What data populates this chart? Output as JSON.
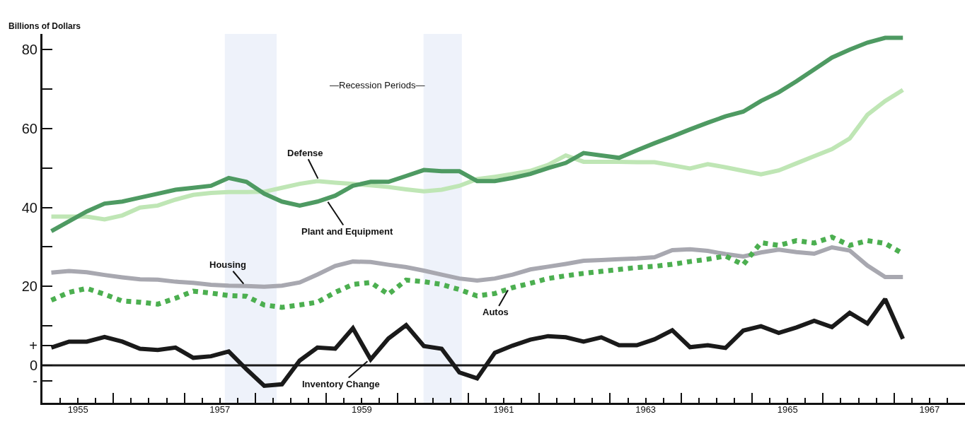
{
  "chart_data": {
    "type": "line",
    "ylabel": "Billions of Dollars",
    "x": [
      1955.125,
      1955.375,
      1955.625,
      1955.875,
      1956.125,
      1956.375,
      1956.625,
      1956.875,
      1957.125,
      1957.375,
      1957.625,
      1957.875,
      1958.125,
      1958.375,
      1958.625,
      1958.875,
      1959.125,
      1959.375,
      1959.625,
      1959.875,
      1960.125,
      1960.375,
      1960.625,
      1960.875,
      1961.125,
      1961.375,
      1961.625,
      1961.875,
      1962.125,
      1962.375,
      1962.625,
      1962.875,
      1963.125,
      1963.375,
      1963.625,
      1963.875,
      1964.125,
      1964.375,
      1964.625,
      1964.875,
      1965.125,
      1965.375,
      1965.625,
      1965.875,
      1966.125,
      1966.375,
      1966.625,
      1966.875,
      1967.125
    ],
    "series": [
      {
        "color": "#bfe6b5",
        "line_style": "solid",
        "values": [
          37.7,
          37.7,
          37.7,
          37,
          38,
          40,
          40.5,
          42,
          43.2,
          43.7,
          43.9,
          43.9,
          44,
          45,
          46,
          46.7,
          46.3,
          46,
          45.6,
          45.2,
          44.6,
          44.1,
          44.5,
          45.5,
          47.2,
          47.8,
          48.5,
          49.3,
          50.8,
          53.2,
          51.6,
          51.6,
          51.6,
          51.5,
          51.5,
          50.7,
          49.9,
          51,
          50.2,
          49.3,
          48.4,
          49.4,
          51.2,
          53,
          54.8,
          57.5,
          63.5,
          67,
          69.8
        ]
      },
      {
        "color": "#4e9a62",
        "line_style": "solid",
        "values": [
          34,
          36.5,
          39,
          41,
          41.5,
          42.5,
          43.5,
          44.5,
          45,
          45.5,
          47.5,
          46.5,
          43.5,
          41.5,
          40.5,
          41.5,
          43,
          45.5,
          46.5,
          46.5,
          48,
          49.5,
          49.2,
          49.2,
          46.7,
          46.7,
          47.5,
          48.5,
          50,
          51.3,
          53.8,
          53.2,
          52.6,
          54.5,
          56.3,
          58,
          59.8,
          61.5,
          63.1,
          64.3,
          67,
          69.2,
          72,
          75,
          78,
          80,
          81.8,
          83,
          83
        ]
      },
      {
        "color": "#a8a8b0",
        "line_style": "solid",
        "values": [
          23.5,
          23.9,
          23.6,
          22.9,
          22.3,
          21.8,
          21.7,
          21.2,
          20.9,
          20.4,
          20.2,
          20.1,
          19.9,
          20.2,
          21,
          23,
          25.2,
          26.3,
          26.2,
          25.5,
          24.9,
          24,
          23,
          22,
          21.5,
          22,
          23,
          24.3,
          25,
          25.7,
          26.5,
          26.7,
          26.9,
          27.1,
          27.4,
          29.2,
          29.4,
          29,
          28.2,
          27.6,
          28.6,
          29.3,
          28.7,
          28.3,
          29.9,
          29.1,
          25.3,
          22.4,
          22.4
        ]
      },
      {
        "color": "#4caf50",
        "line_style": "dotted",
        "values": [
          16.5,
          18.5,
          19.5,
          18,
          16.3,
          16,
          15.5,
          17,
          18.8,
          18.3,
          17.7,
          17.5,
          15.3,
          14.7,
          15.3,
          16,
          18.5,
          20.5,
          21,
          18,
          21.6,
          21.2,
          20.5,
          19.2,
          17.6,
          18.2,
          19.7,
          20.8,
          22,
          22.7,
          23.3,
          23.8,
          24.3,
          24.8,
          25.1,
          25.6,
          26.3,
          26.9,
          27.7,
          25.5,
          31.1,
          30.4,
          31.6,
          31,
          32.5,
          30.4,
          31.6,
          30.9,
          28.3
        ]
      },
      {
        "color": "#1a1a1a",
        "line_style": "solid",
        "values": [
          4.5,
          6,
          6,
          7.2,
          6,
          4.2,
          3.9,
          4.5,
          1.9,
          2.3,
          3.5,
          -1,
          -5.2,
          -4.8,
          1.2,
          4.5,
          4.2,
          9.4,
          1.5,
          6.8,
          10.2,
          4.9,
          4.2,
          -1.8,
          -3.3,
          3.2,
          5,
          6.5,
          7.4,
          7.1,
          6,
          7.1,
          5.1,
          5.1,
          6.6,
          8.9,
          4.6,
          5.1,
          4.4,
          8.8,
          9.9,
          8.2,
          9.6,
          11.3,
          9.7,
          13.3,
          10.6,
          16.8,
          6.7
        ]
      }
    ],
    "annotations": [
      "—Recession Periods—",
      {
        "text": "Defense",
        "x": 1958.9,
        "y": 46.7
      },
      {
        "text": "Plant and Equipment",
        "x": 1959.0,
        "y": 42
      },
      {
        "text": "Housing",
        "x": 1957.86,
        "y": 20.1
      },
      {
        "text": "Autos",
        "x": 1961.58,
        "y": 19.7
      },
      {
        "text": "Inventory Change",
        "x": 1959.61,
        "y": 1.5
      }
    ],
    "bands": [
      {
        "axis": "x",
        "from": 1957.57,
        "to": 1958.3,
        "color": "#eef2fa"
      },
      {
        "axis": "x",
        "from": 1960.37,
        "to": 1960.91,
        "color": "#eef2fa"
      }
    ],
    "ref_lines": [
      {
        "axis": "y",
        "value": 0,
        "color": "#1a1a1a"
      }
    ],
    "xlim": [
      1955,
      1968
    ],
    "xticks": [
      {
        "value": 1955.5,
        "label": "1955"
      },
      {
        "value": 1957.5,
        "label": "1957"
      },
      {
        "value": 1959.5,
        "label": "1959"
      },
      {
        "value": 1961.5,
        "label": "1961"
      },
      {
        "value": 1963.5,
        "label": "1963"
      },
      {
        "value": 1965.5,
        "label": "1965"
      },
      {
        "value": 1967.5,
        "label": "1967"
      },
      {
        "value": 1955.25,
        "label": null
      },
      {
        "value": 1955.5,
        "label": null
      },
      {
        "value": 1955.75,
        "label": null
      },
      {
        "value": 1956,
        "label": null
      },
      {
        "value": 1956.25,
        "label": null
      },
      {
        "value": 1956.5,
        "label": null
      },
      {
        "value": 1956.75,
        "label": null
      },
      {
        "value": 1957,
        "label": null
      },
      {
        "value": 1957.25,
        "label": null
      },
      {
        "value": 1957.5,
        "label": null
      },
      {
        "value": 1957.75,
        "label": null
      },
      {
        "value": 1958,
        "label": null
      },
      {
        "value": 1958.25,
        "label": null
      },
      {
        "value": 1958.5,
        "label": null
      },
      {
        "value": 1958.75,
        "label": null
      },
      {
        "value": 1959,
        "label": null
      },
      {
        "value": 1959.25,
        "label": null
      },
      {
        "value": 1959.5,
        "label": null
      },
      {
        "value": 1959.75,
        "label": null
      },
      {
        "value": 1960,
        "label": null
      },
      {
        "value": 1960.25,
        "label": null
      },
      {
        "value": 1960.5,
        "label": null
      },
      {
        "value": 1960.75,
        "label": null
      },
      {
        "value": 1961,
        "label": null
      },
      {
        "value": 1961.25,
        "label": null
      },
      {
        "value": 1961.5,
        "label": null
      },
      {
        "value": 1961.75,
        "label": null
      },
      {
        "value": 1962,
        "label": null
      },
      {
        "value": 1962.25,
        "label": null
      },
      {
        "value": 1962.5,
        "label": null
      },
      {
        "value": 1962.75,
        "label": null
      },
      {
        "value": 1963,
        "label": null
      },
      {
        "value": 1963.25,
        "label": null
      },
      {
        "value": 1963.5,
        "label": null
      },
      {
        "value": 1963.75,
        "label": null
      },
      {
        "value": 1964,
        "label": null
      },
      {
        "value": 1964.25,
        "label": null
      },
      {
        "value": 1964.5,
        "label": null
      },
      {
        "value": 1964.75,
        "label": null
      },
      {
        "value": 1965,
        "label": null
      },
      {
        "value": 1965.25,
        "label": null
      },
      {
        "value": 1965.5,
        "label": null
      },
      {
        "value": 1965.75,
        "label": null
      },
      {
        "value": 1966,
        "label": null
      },
      {
        "value": 1966.25,
        "label": null
      },
      {
        "value": 1966.5,
        "label": null
      },
      {
        "value": 1966.75,
        "label": null
      },
      {
        "value": 1967,
        "label": null
      },
      {
        "value": 1967.25,
        "label": null
      },
      {
        "value": 1967.5,
        "label": null
      },
      {
        "value": 1967.75,
        "label": null
      }
    ],
    "ylim": [
      -9.5,
      84
    ],
    "yticks": [
      80,
      {
        "value": 70,
        "label": null
      },
      60,
      {
        "value": 50,
        "label": null
      },
      40,
      {
        "value": 30,
        "label": null
      },
      20,
      {
        "value": 10,
        "label": null
      },
      {
        "value": 5,
        "label": "+"
      },
      0,
      {
        "value": -4,
        "label": "-"
      }
    ],
    "grid": false
  }
}
